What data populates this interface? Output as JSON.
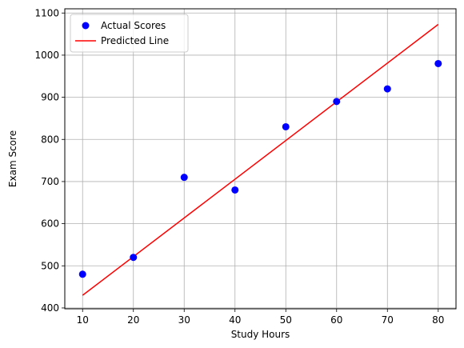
{
  "chart_data": {
    "type": "scatter",
    "xlabel": "Study Hours",
    "ylabel": "Exam Score",
    "xlim": [
      6.5,
      83.5
    ],
    "ylim": [
      398,
      1110
    ],
    "xticks": [
      10,
      20,
      30,
      40,
      50,
      60,
      70,
      80
    ],
    "yticks": [
      400,
      500,
      600,
      700,
      800,
      900,
      1000,
      1100
    ],
    "grid": true,
    "legend_position": "top-left",
    "series": [
      {
        "name": "Actual Scores",
        "kind": "scatter",
        "color": "#0000ff",
        "x": [
          10,
          20,
          30,
          40,
          50,
          60,
          70,
          80
        ],
        "y": [
          480,
          520,
          710,
          680,
          830,
          890,
          920,
          980
        ]
      },
      {
        "name": "Predicted Line",
        "kind": "line",
        "color": "#ff0000",
        "x": [
          10,
          80
        ],
        "y": [
          430,
          1073
        ]
      }
    ]
  }
}
